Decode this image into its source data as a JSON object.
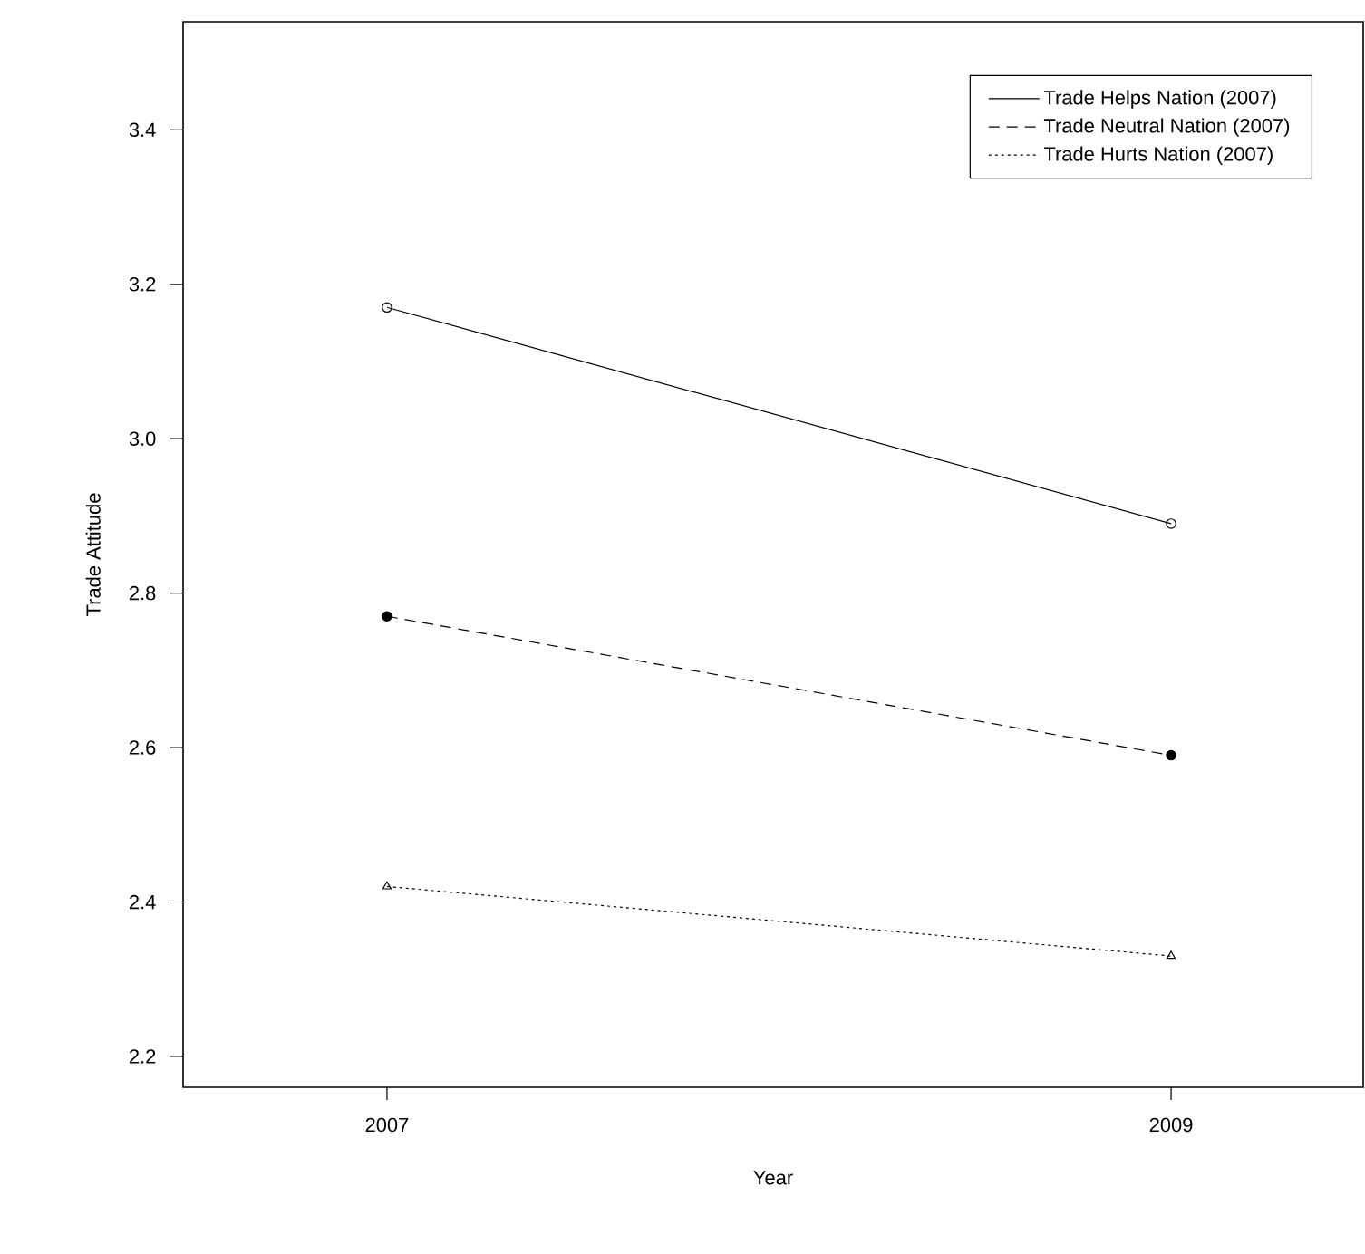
{
  "chart_data": {
    "type": "line",
    "xlabel": "Year",
    "ylabel": "Trade Attitude",
    "x": [
      2007,
      2009
    ],
    "xlim": [
      2006.48,
      2009.49
    ],
    "xticks": [
      2007,
      2009
    ],
    "ylim": [
      2.16,
      3.54
    ],
    "yticks": [
      2.2,
      2.4,
      2.6,
      2.8,
      {
        "value": 3.0,
        "label": "3.0"
      },
      3.2,
      3.4
    ],
    "legend": "top right",
    "grid": false,
    "series": [
      {
        "name": "Trade Helps Nation (2007)",
        "color": "#000000",
        "values": [
          3.17,
          2.89
        ],
        "line_style": "solid",
        "marker": "circle"
      },
      {
        "name": "Trade Neutral Nation (2007)",
        "color": "#000000",
        "values": [
          2.77,
          2.59
        ],
        "line_style": "dashed",
        "marker": "circle"
      },
      {
        "name": "Trade Hurts Nation (2007)",
        "color": "#000000",
        "values": [
          2.42,
          2.33
        ],
        "line_style": "dotted",
        "marker": "triangle"
      }
    ]
  }
}
